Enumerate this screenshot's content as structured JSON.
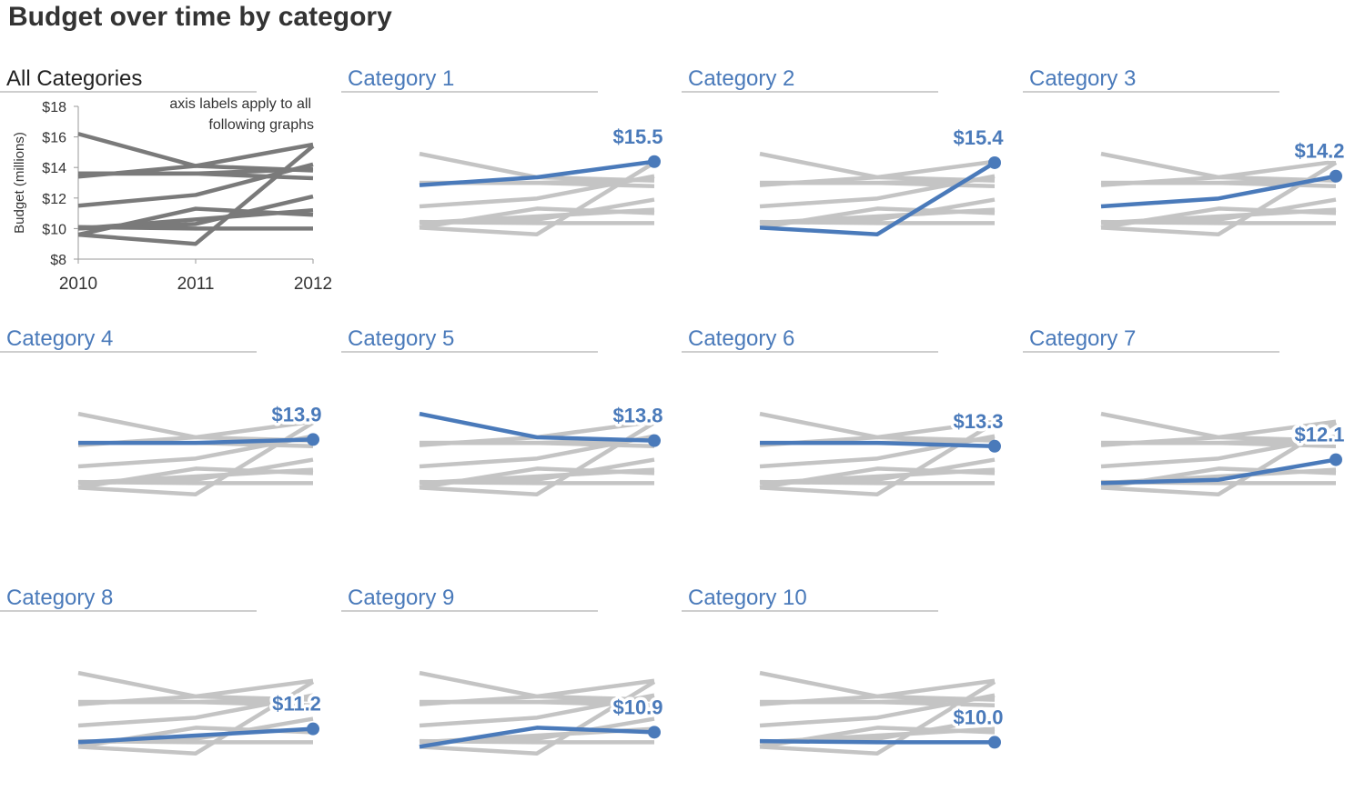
{
  "page": {
    "title": "Budget over time by category"
  },
  "colors": {
    "highlight": "#4a7aba",
    "background_lines": "#c4c4c4",
    "overview_lines": "#7a7a7a",
    "title_text": "#333333",
    "rule": "#bdbdbd"
  },
  "overview": {
    "title": "All Categories",
    "ylabel": "Budget (millions)",
    "note_line1": "axis labels apply to all",
    "note_line2": "following graphs",
    "yticks": [
      "$18",
      "$16",
      "$14",
      "$12",
      "$10",
      "$8"
    ],
    "xticks": [
      "2010",
      "2011",
      "2012"
    ]
  },
  "chart_data": {
    "type": "line",
    "title": "Budget over time by category",
    "xlabel": "",
    "ylabel": "Budget (millions)",
    "x": [
      2010,
      2011,
      2012
    ],
    "ylim": [
      8,
      18
    ],
    "grid": false,
    "series": [
      {
        "name": "Category 1",
        "values": [
          13.4,
          14.1,
          15.5
        ],
        "label": "$15.5"
      },
      {
        "name": "Category 2",
        "values": [
          9.6,
          9.0,
          15.4
        ],
        "label": "$15.4"
      },
      {
        "name": "Category 3",
        "values": [
          11.5,
          12.2,
          14.2
        ],
        "label": "$14.2"
      },
      {
        "name": "Category 4",
        "values": [
          13.6,
          13.6,
          13.9
        ],
        "label": "$13.9"
      },
      {
        "name": "Category 5",
        "values": [
          16.2,
          14.1,
          13.8
        ],
        "label": "$13.8"
      },
      {
        "name": "Category 6",
        "values": [
          13.6,
          13.6,
          13.3
        ],
        "label": "$13.3"
      },
      {
        "name": "Category 7",
        "values": [
          10.0,
          10.3,
          12.1
        ],
        "label": "$12.1"
      },
      {
        "name": "Category 8",
        "values": [
          10.0,
          10.6,
          11.2
        ],
        "label": "$11.2"
      },
      {
        "name": "Category 9",
        "values": [
          9.6,
          11.3,
          10.9
        ],
        "label": "$10.9"
      },
      {
        "name": "Category 10",
        "values": [
          10.1,
          10.0,
          10.0
        ],
        "label": "$10.0"
      }
    ]
  }
}
